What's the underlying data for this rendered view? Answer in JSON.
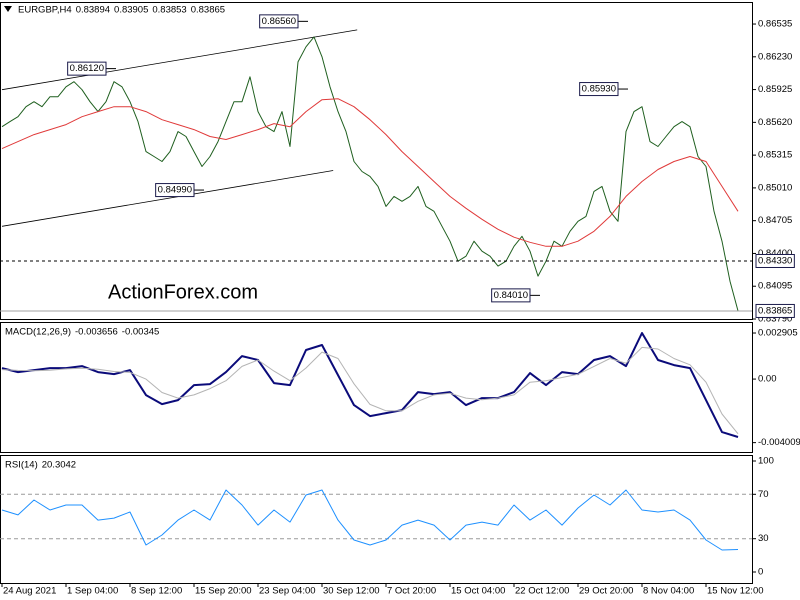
{
  "chart_data": [
    {
      "type": "line",
      "title": "EURGBP,H4",
      "ohlc": [
        0.83894,
        0.83905,
        0.83853
      ],
      "xlim": [
        -0.25,
        93.75
      ],
      "ylim": [
        0.8379,
        0.8674
      ],
      "yticks": [
        {
          "value": 0.8379,
          "label": "0.83790"
        },
        0.84095,
        {
          "value": 0.844,
          "label": "0.84400"
        },
        0.84705,
        {
          "value": 0.8501,
          "label": "0.85010"
        },
        0.85315,
        {
          "value": 0.8562,
          "label": "0.85620"
        },
        0.85925,
        {
          "value": 0.8623,
          "label": "0.86230"
        },
        0.86535
      ],
      "series": [
        {
          "color": "#1f5f1f",
          "values": [
            0.8558,
            0.85627,
            0.85673,
            0.85766,
            0.85812,
            0.85766,
            0.85859,
            0.85859,
            0.85951,
            0.85998,
            0.85924,
            0.85812,
            0.8572,
            0.85812,
            0.85998,
            0.85951,
            0.85812,
            0.85627,
            0.85348,
            0.85302,
            0.85256,
            0.85348,
            0.85534,
            0.85488,
            0.85348,
            0.85209,
            0.85302,
            0.85441,
            0.85627,
            0.85812,
            0.85812,
            0.86044,
            0.8572,
            0.8558,
            0.85534,
            0.8572,
            0.85395,
            0.86183,
            0.86323,
            0.86415,
            0.8623,
            0.85951,
            0.8572,
            0.85534,
            0.85256,
            0.85163,
            0.85117,
            0.85024,
            0.84838,
            0.84931,
            0.84885,
            0.84931,
            0.85024,
            0.84838,
            0.84792,
            0.84653,
            0.84514,
            0.84328,
            0.84374,
            0.84514,
            0.84421,
            0.84374,
            0.84282,
            0.84328,
            0.84467,
            0.8456,
            0.84421,
            0.84189,
            0.84328,
            0.84514,
            0.84467,
            0.84606,
            0.84699,
            0.84745,
            0.84977,
            0.85024,
            0.84792,
            0.84699,
            0.85534,
            0.8572,
            0.85766,
            0.85441,
            0.85395,
            0.85488,
            0.8558,
            0.85627,
            0.8558,
            0.85302,
            0.85209,
            0.84792,
            0.84514,
            0.84142,
            0.83865
          ]
        },
        {
          "color": "#e03a3a",
          "x": [
            0,
            2,
            4,
            6,
            8,
            10,
            12,
            14,
            16,
            18,
            20,
            22,
            24,
            26,
            28,
            30,
            32,
            34,
            36,
            38,
            40,
            42,
            44,
            46,
            48,
            50,
            52,
            54,
            56,
            58,
            60,
            62,
            64,
            66,
            68,
            70,
            72,
            74,
            76,
            78,
            80,
            82,
            84,
            86,
            88,
            90,
            92
          ],
          "values": [
            0.85376,
            0.85441,
            0.85506,
            0.85553,
            0.85599,
            0.85673,
            0.8572,
            0.85766,
            0.85766,
            0.8572,
            0.85645,
            0.85599,
            0.85553,
            0.85488,
            0.8546,
            0.85506,
            0.85553,
            0.85608,
            0.8558,
            0.8572,
            0.85831,
            0.8584,
            0.85766,
            0.85645,
            0.85506,
            0.85348,
            0.85209,
            0.8507,
            0.84931,
            0.8482,
            0.84718,
            0.84625,
            0.84551,
            0.84504,
            0.84467,
            0.84467,
            0.84514,
            0.84606,
            0.84745,
            0.84931,
            0.8507,
            0.85181,
            0.85256,
            0.85302,
            0.85256,
            0.85024,
            0.84792
          ]
        }
      ],
      "annotations": [
        {
          "value": 0.8612,
          "label": "0.86120",
          "x": 14
        },
        {
          "value": 0.8656,
          "label": "0.86560",
          "x": 38
        },
        {
          "value": 0.8499,
          "label": "0.84990",
          "x": 25
        },
        {
          "value": 0.8593,
          "label": "0.85930",
          "x": 78
        },
        {
          "value": 0.8401,
          "label": "0.84010",
          "x": 67
        }
      ],
      "trendlines": [
        {
          "x": [
            0,
            44.4
          ],
          "values": [
            0.85924,
            0.8648
          ]
        },
        {
          "x": [
            0,
            41.4
          ],
          "values": [
            0.84653,
            0.85172
          ]
        }
      ],
      "hlines": [
        {
          "value": 0.8433,
          "label": "0.84330"
        }
      ],
      "watermark": "ActionForex.com"
    },
    {
      "type": "line",
      "title": "MACD(12,26,9)",
      "xlim": [
        -0.25,
        93.75
      ],
      "ylim": [
        -0.0046,
        0.0036
      ],
      "yticks": [
        0.002905,
        {
          "value": 0,
          "label": "0.00"
        },
        -0.004009
      ],
      "series": [
        {
          "color": "#0b0b7a",
          "x": [
            0,
            2,
            4,
            6,
            8,
            10,
            12,
            14,
            16,
            18,
            20,
            22,
            24,
            26,
            28,
            30,
            32,
            34,
            36,
            38,
            40,
            42,
            44,
            46,
            48,
            50,
            52,
            54,
            56,
            58,
            60,
            62,
            64,
            66,
            68,
            70,
            72,
            74,
            76,
            78,
            80,
            82,
            84,
            86,
            88,
            90,
            92
          ],
          "values": [
            0.000695,
            0.000442,
            0.000568,
            0.000695,
            0.000695,
            0.000821,
            0.000442,
            0.000316,
            0.000568,
            -0.00101,
            -0.001579,
            -0.001326,
            -0.000379,
            -0.000316,
            0.000442,
            0.001452,
            0.0012,
            -0.000253,
            -0.000379,
            0.001831,
            0.002147,
            0.000253,
            -0.001642,
            -0.002337,
            -0.002147,
            -0.001958,
            -0.000821,
            -0.000947,
            -0.000821,
            -0.001642,
            -0.0012,
            -0.0012,
            -0.000821,
            0.000379,
            -0.000379,
            0.000442,
            0.000316,
            0.0012,
            0.001452,
            0.000821,
            0.002905,
            0.0012,
            0.000884,
            0.000695,
            -0.001326,
            -0.003347,
            -0.003656
          ]
        },
        {
          "color": "#b4b4b4",
          "x": [
            0,
            2,
            4,
            6,
            8,
            10,
            12,
            14,
            16,
            18,
            20,
            22,
            24,
            26,
            28,
            30,
            32,
            34,
            36,
            38,
            40,
            42,
            44,
            46,
            48,
            50,
            52,
            54,
            56,
            58,
            60,
            62,
            64,
            66,
            68,
            70,
            72,
            74,
            76,
            78,
            80,
            82,
            84,
            86,
            88,
            90,
            92
          ],
          "values": [
            0.0006,
            0.00055,
            0.00052,
            0.00056,
            0.00064,
            0.00068,
            0.00062,
            0.00048,
            0.00042,
            0,
            -0.00085,
            -0.0012,
            -0.001,
            -0.0006,
            -0.0001,
            0.0008,
            0.0012,
            0.0005,
            -0.0001,
            0.0007,
            0.0017,
            0.0013,
            -0.0003,
            -0.0016,
            -0.002,
            -0.002,
            -0.0014,
            -0.001,
            -0.0009,
            -0.0012,
            -0.0013,
            -0.0012,
            -0.001,
            -0.0002,
            -0.0001,
            0.0001,
            0.0003,
            0.0008,
            0.0013,
            0.001,
            0.002,
            0.0019,
            0.0013,
            0.0009,
            -0.0002,
            -0.0022,
            -0.00345
          ]
        }
      ]
    },
    {
      "type": "line",
      "title": "RSI(14)",
      "xlim": [
        -0.25,
        93.75
      ],
      "ylim": [
        -9.9,
        105.4
      ],
      "yticks": [
        0,
        30,
        70,
        100
      ],
      "levels": [
        30,
        70
      ],
      "xticks": [
        {
          "value": 0,
          "label": "24 Aug 2021"
        },
        {
          "value": 8,
          "label": "1 Sep 04:00"
        },
        {
          "value": 16,
          "label": "8 Sep 12:00"
        },
        {
          "value": 24,
          "label": "15 Sep 20:00"
        },
        {
          "value": 32,
          "label": "23 Sep 04:00"
        },
        {
          "value": 40,
          "label": "30 Sep 12:00"
        },
        {
          "value": 48,
          "label": "7 Oct 20:00"
        },
        {
          "value": 56,
          "label": "15 Oct 04:00"
        },
        {
          "value": 64,
          "label": "22 Oct 12:00"
        },
        {
          "value": 72,
          "label": "29 Oct 20:00"
        },
        {
          "value": 80,
          "label": "8 Nov 04:00"
        },
        {
          "value": 88,
          "label": "15 Nov 12:00"
        }
      ],
      "series": [
        {
          "color": "#1e90ff",
          "x": [
            0,
            2,
            4,
            6,
            8,
            10,
            12,
            14,
            16,
            18,
            20,
            22,
            24,
            26,
            28,
            30,
            32,
            34,
            36,
            38,
            40,
            42,
            44,
            46,
            48,
            50,
            52,
            54,
            56,
            58,
            60,
            62,
            64,
            66,
            68,
            70,
            72,
            74,
            76,
            78,
            80,
            82,
            84,
            86,
            88,
            90,
            92
          ],
          "values": [
            55.9,
            51.4,
            64.9,
            55.9,
            60.4,
            60.4,
            46.8,
            48.6,
            54.1,
            24.3,
            33.3,
            46.8,
            55.9,
            46.8,
            73.9,
            60.4,
            42.3,
            55.9,
            45,
            69.4,
            73.9,
            46.8,
            28.8,
            24.3,
            28.8,
            42.3,
            46.8,
            42.3,
            28.8,
            42.3,
            45,
            42.3,
            60.4,
            46.8,
            55.9,
            42.3,
            57.7,
            69.4,
            60.4,
            73.9,
            55.9,
            54.1,
            55.9,
            46.8,
            28.8,
            19.8,
            20.3042
          ]
        }
      ]
    }
  ]
}
